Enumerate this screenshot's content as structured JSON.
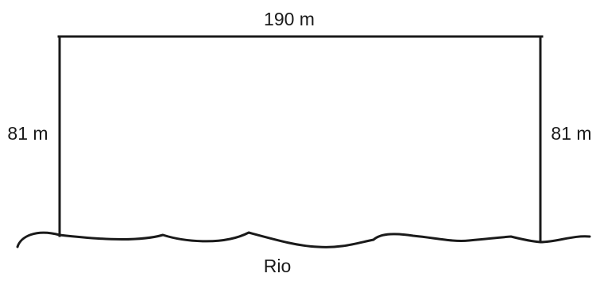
{
  "diagram": {
    "top_side_label": "190 m",
    "left_side_label": "81 m",
    "right_side_label": "81 m",
    "river_label": "Rio"
  },
  "colors": {
    "line": "#1a1a1a",
    "background": "#ffffff"
  }
}
